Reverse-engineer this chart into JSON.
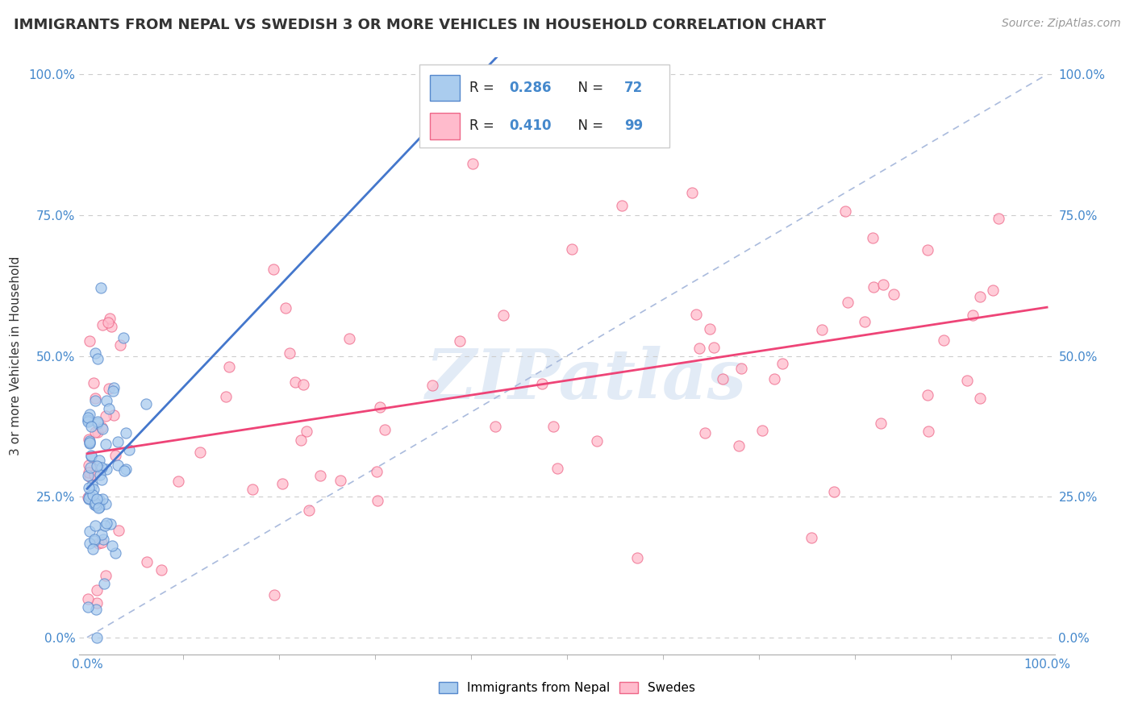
{
  "title": "IMMIGRANTS FROM NEPAL VS SWEDISH 3 OR MORE VEHICLES IN HOUSEHOLD CORRELATION CHART",
  "source": "Source: ZipAtlas.com",
  "ylabel": "3 or more Vehicles in Household",
  "legend_label1": "Immigrants from Nepal",
  "legend_label2": "Swedes",
  "R1": 0.286,
  "N1": 72,
  "R2": 0.41,
  "N2": 99,
  "color_blue_fill": "#aaccee",
  "color_blue_edge": "#5588cc",
  "color_pink_fill": "#ffbbcc",
  "color_pink_edge": "#ee6688",
  "color_blue_line": "#4477cc",
  "color_pink_line": "#ee4477",
  "color_dashed": "#aabbdd",
  "background": "#ffffff",
  "yticks": [
    "0.0%",
    "25.0%",
    "50.0%",
    "75.0%",
    "100.0%"
  ],
  "ytick_vals": [
    0.0,
    0.25,
    0.5,
    0.75,
    1.0
  ],
  "watermark": "ZIPatlas"
}
